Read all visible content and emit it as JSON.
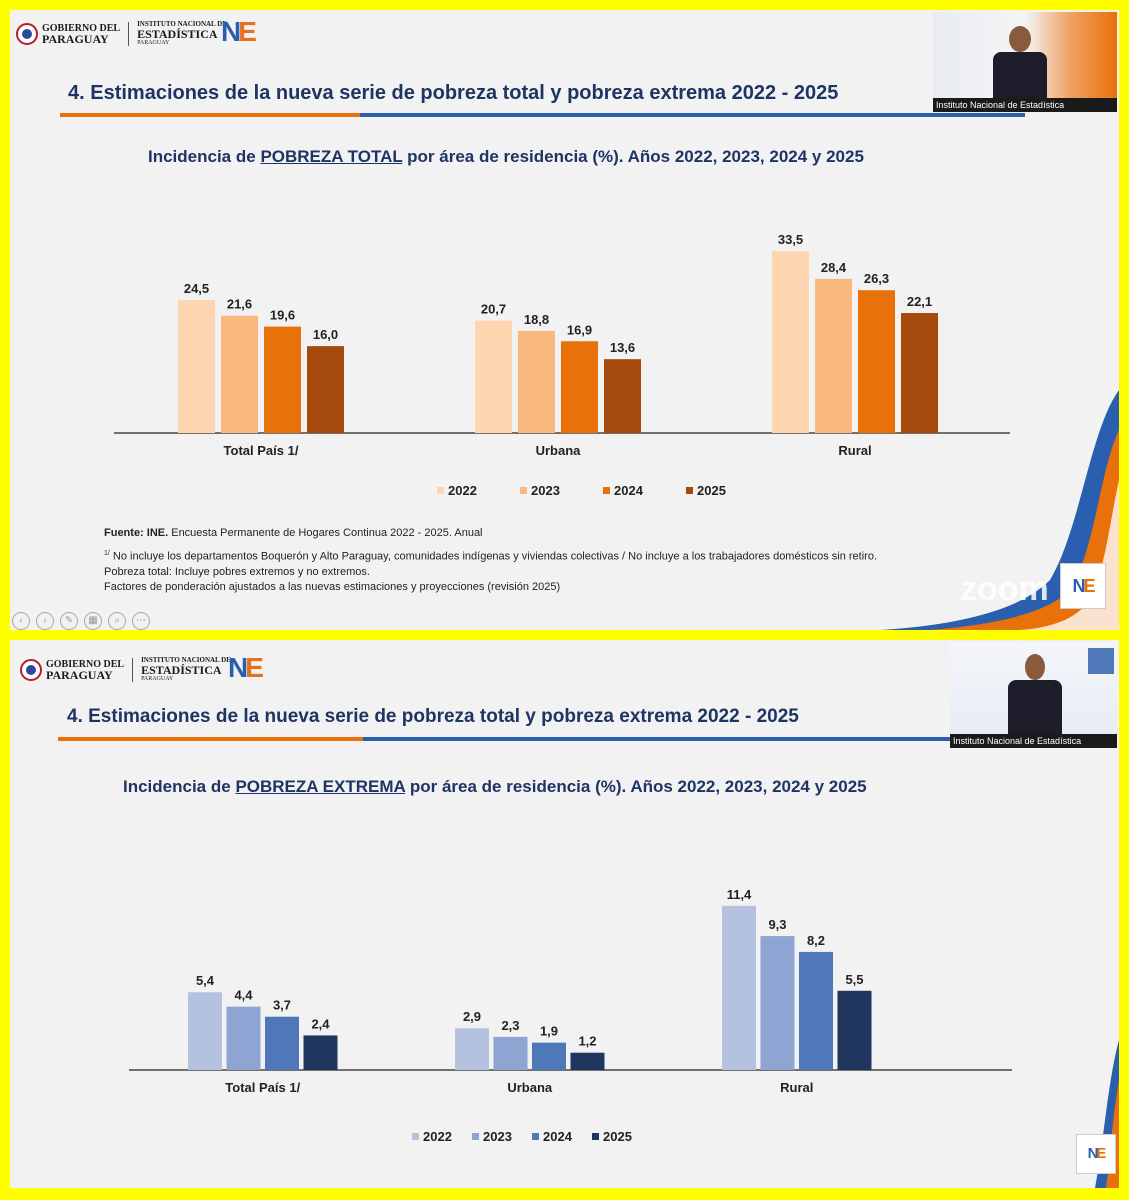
{
  "slide1": {
    "gov_logo": {
      "line1": "GOBIERNO DEL",
      "line2": "PARAGUAY"
    },
    "ine_logo": {
      "line1": "INSTITUTO NACIONAL DE",
      "line2": "ESTADÍSTICA",
      "line3": "PARAGUAY"
    },
    "section_title": "4. Estimaciones de la nueva serie de pobreza total y pobreza extrema 2022 - 2025",
    "chart_title_pre": "Incidencia de ",
    "chart_title_emph": "POBREZA TOTAL",
    "chart_title_post": "  por área de residencia (%). Años 2022, 2023, 2024 y 2025",
    "webcam_caption": "Instituto Nacional de Estadística",
    "notes": {
      "source_bold": "Fuente: INE.",
      "source_text": " Encuesta Permanente de Hogares Continua 2022 - 2025. Anual",
      "footnote_mark": "1/",
      "footnote": " No incluye los departamentos Boquerón y Alto Paraguay, comunidades indígenas y viviendas colectivas / No incluye a los trabajadores domésticos sin retiro.",
      "note2": "Pobreza total: Incluye pobres extremos y no extremos.",
      "note3": "Factores de ponderación ajustados a las nuevas estimaciones y proyecciones (revisión 2025)"
    },
    "zoom_text": "zoom"
  },
  "slide2": {
    "gov_logo": {
      "line1": "GOBIERNO DEL",
      "line2": "PARAGUAY"
    },
    "ine_logo": {
      "line1": "INSTITUTO NACIONAL DE",
      "line2": "ESTADÍSTICA",
      "line3": "PARAGUAY"
    },
    "section_title": "4. Estimaciones de la nueva serie de pobreza total y pobreza extrema 2022 - 2025",
    "chart_title_pre": "Incidencia de ",
    "chart_title_emph": "POBREZA EXTREMA",
    "chart_title_post": " por área de residencia (%). Años 2022, 2023, 2024 y 2025",
    "webcam_caption": "Instituto Nacional de Estadística"
  },
  "colors": {
    "frame": "#ffff00",
    "title_navy": "#1e3464",
    "total_series": [
      "#fdd5b1",
      "#f9b97e",
      "#e8710a",
      "#a54a0c"
    ],
    "extrema_series": [
      "#b4c2e0",
      "#8ea4d2",
      "#4e78b8",
      "#21365e"
    ]
  },
  "chart_data": [
    {
      "type": "bar",
      "categories": [
        "Total País 1/",
        "Urbana",
        "Rural"
      ],
      "series": [
        {
          "name": "2022",
          "values": [
            24.5,
            20.7,
            33.5
          ]
        },
        {
          "name": "2023",
          "values": [
            21.6,
            18.8,
            28.4
          ]
        },
        {
          "name": "2024",
          "values": [
            19.6,
            16.9,
            26.3
          ]
        },
        {
          "name": "2025",
          "values": [
            16.0,
            13.6,
            22.1
          ]
        }
      ],
      "labels": [
        [
          "24,5",
          "20,7",
          "33,5"
        ],
        [
          "21,6",
          "18,8",
          "28,4"
        ],
        [
          "19,6",
          "16,9",
          "26,3"
        ],
        [
          "16,0",
          "13,6",
          "22,1"
        ]
      ],
      "ylim": [
        0,
        35
      ],
      "legend": "bottom",
      "grid": false
    },
    {
      "type": "bar",
      "categories": [
        "Total País 1/",
        "Urbana",
        "Rural"
      ],
      "series": [
        {
          "name": "2022",
          "values": [
            5.4,
            2.9,
            11.4
          ]
        },
        {
          "name": "2023",
          "values": [
            4.4,
            2.3,
            9.3
          ]
        },
        {
          "name": "2024",
          "values": [
            3.7,
            1.9,
            8.2
          ]
        },
        {
          "name": "2025",
          "values": [
            2.4,
            1.2,
            5.5
          ]
        }
      ],
      "labels": [
        [
          "5,4",
          "2,9",
          "11,4"
        ],
        [
          "4,4",
          "2,3",
          "9,3"
        ],
        [
          "3,7",
          "1,9",
          "8,2"
        ],
        [
          "2,4",
          "1,2",
          "5,5"
        ]
      ],
      "ylim": [
        0,
        12.5
      ],
      "legend": "bottom",
      "grid": false
    }
  ]
}
